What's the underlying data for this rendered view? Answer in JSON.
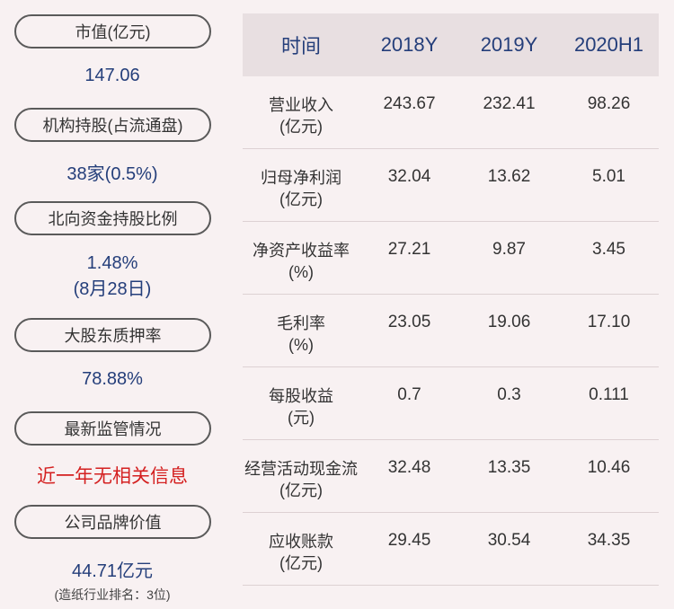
{
  "left": {
    "items": [
      {
        "label": "市值(亿元)",
        "value": "147.06"
      },
      {
        "label": "机构持股(占流通盘)",
        "value": "38家(0.5%)"
      },
      {
        "label": "北向资金持股比例",
        "value": "1.48%",
        "value2": "(8月28日)"
      },
      {
        "label": "大股东质押率",
        "value": "78.88%"
      },
      {
        "label": "最新监管情况",
        "value": "近一年无相关信息"
      },
      {
        "label": "公司品牌价值",
        "value": "44.71亿元",
        "note": "(造纸行业排名：3位)"
      }
    ]
  },
  "table": {
    "headers": [
      "时间",
      "2018Y",
      "2019Y",
      "2020H1"
    ],
    "rows": [
      {
        "label1": "营业收入",
        "label2": "(亿元)",
        "v": [
          "243.67",
          "232.41",
          "98.26"
        ]
      },
      {
        "label1": "归母净利润",
        "label2": "(亿元)",
        "v": [
          "32.04",
          "13.62",
          "5.01"
        ]
      },
      {
        "label1": "净资产收益率",
        "label2": "(%)",
        "v": [
          "27.21",
          "9.87",
          "3.45"
        ]
      },
      {
        "label1": "毛利率",
        "label2": "(%)",
        "v": [
          "23.05",
          "19.06",
          "17.10"
        ]
      },
      {
        "label1": "每股收益",
        "label2": "(元)",
        "v": [
          "0.7",
          "0.3",
          "0.111"
        ]
      },
      {
        "label1": "经营活动现金流",
        "label2": "(亿元)",
        "v": [
          "32.48",
          "13.35",
          "10.46"
        ]
      },
      {
        "label1": "应收账款",
        "label2": "(亿元)",
        "v": [
          "29.45",
          "30.54",
          "34.35"
        ]
      }
    ]
  },
  "colors": {
    "background": "#f8f1f2",
    "header_bg": "#e8dfe1",
    "value_blue": "#243e7a",
    "alert_red": "#d42020"
  }
}
